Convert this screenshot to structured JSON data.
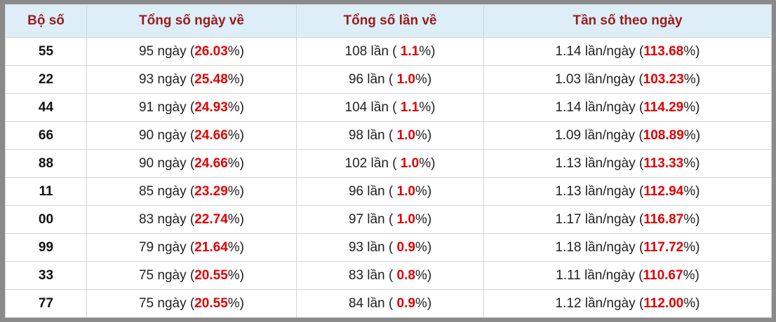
{
  "table": {
    "header": [
      "Bộ số",
      "Tổng số ngày về",
      "Tổng số lần về",
      "Tần số theo ngày"
    ],
    "rows": [
      [
        "55",
        [
          "95 ngày (",
          "26.03",
          "%)"
        ],
        [
          "108 lần ( ",
          "1.1",
          "%)"
        ],
        [
          "1.14 lần/ngày (",
          "113.68",
          "%)"
        ]
      ],
      [
        "22",
        [
          "93 ngày (",
          "25.48",
          "%)"
        ],
        [
          "96 lần ( ",
          "1.0",
          "%)"
        ],
        [
          "1.03 lần/ngày (",
          "103.23",
          "%)"
        ]
      ],
      [
        "44",
        [
          "91 ngày (",
          "24.93",
          "%)"
        ],
        [
          "104 lần ( ",
          "1.1",
          "%)"
        ],
        [
          "1.14 lần/ngày (",
          "114.29",
          "%)"
        ]
      ],
      [
        "66",
        [
          "90 ngày (",
          "24.66",
          "%)"
        ],
        [
          "98 lần ( ",
          "1.0",
          "%)"
        ],
        [
          "1.09 lần/ngày (",
          "108.89",
          "%)"
        ]
      ],
      [
        "88",
        [
          "90 ngày (",
          "24.66",
          "%)"
        ],
        [
          "102 lần ( ",
          "1.0",
          "%)"
        ],
        [
          "1.13 lần/ngày (",
          "113.33",
          "%)"
        ]
      ],
      [
        "11",
        [
          "85 ngày (",
          "23.29",
          "%)"
        ],
        [
          "96 lần ( ",
          "1.0",
          "%)"
        ],
        [
          "1.13 lần/ngày (",
          "112.94",
          "%)"
        ]
      ],
      [
        "00",
        [
          "83 ngày (",
          "22.74",
          "%)"
        ],
        [
          "97 lần ( ",
          "1.0",
          "%)"
        ],
        [
          "1.17 lần/ngày (",
          "116.87",
          "%)"
        ]
      ],
      [
        "99",
        [
          "79 ngày (",
          "21.64",
          "%)"
        ],
        [
          "93 lần ( ",
          "0.9",
          "%)"
        ],
        [
          "1.18 lần/ngày (",
          "117.72",
          "%)"
        ]
      ],
      [
        "33",
        [
          "75 ngày (",
          "20.55",
          "%)"
        ],
        [
          "83 lần ( ",
          "0.8",
          "%)"
        ],
        [
          "1.11 lần/ngày (",
          "110.67",
          "%)"
        ]
      ],
      [
        "77",
        [
          "75 ngày (",
          "20.55",
          "%)"
        ],
        [
          "84 lần ( ",
          "0.9",
          "%)"
        ],
        [
          "1.12 lần/ngày (",
          "112.00",
          "%)"
        ]
      ]
    ]
  }
}
